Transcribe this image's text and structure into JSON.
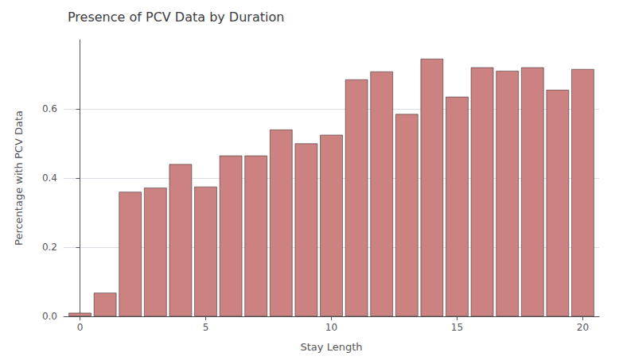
{
  "chart_data": {
    "type": "bar",
    "title": "Presence of PCV Data by Duration",
    "xlabel": "Stay Length",
    "ylabel": "Percentage with PCV Data",
    "x": [
      0,
      1,
      2,
      3,
      4,
      5,
      6,
      7,
      8,
      9,
      10,
      11,
      12,
      13,
      14,
      15,
      16,
      17,
      18,
      19,
      20
    ],
    "values": [
      0.01,
      0.068,
      0.36,
      0.372,
      0.44,
      0.375,
      0.465,
      0.465,
      0.54,
      0.5,
      0.525,
      0.685,
      0.708,
      0.585,
      0.745,
      0.635,
      0.72,
      0.71,
      0.72,
      0.655,
      0.715
    ],
    "color": "#CD8282",
    "xlim": [
      -0.65,
      20.65
    ],
    "xticks": [
      0,
      5,
      10,
      15,
      20
    ],
    "ylim": [
      0,
      0.8
    ],
    "yticks": [
      {
        "value": 0,
        "label": "0.0"
      },
      0.2,
      0.4,
      0.6
    ],
    "grid": true
  }
}
